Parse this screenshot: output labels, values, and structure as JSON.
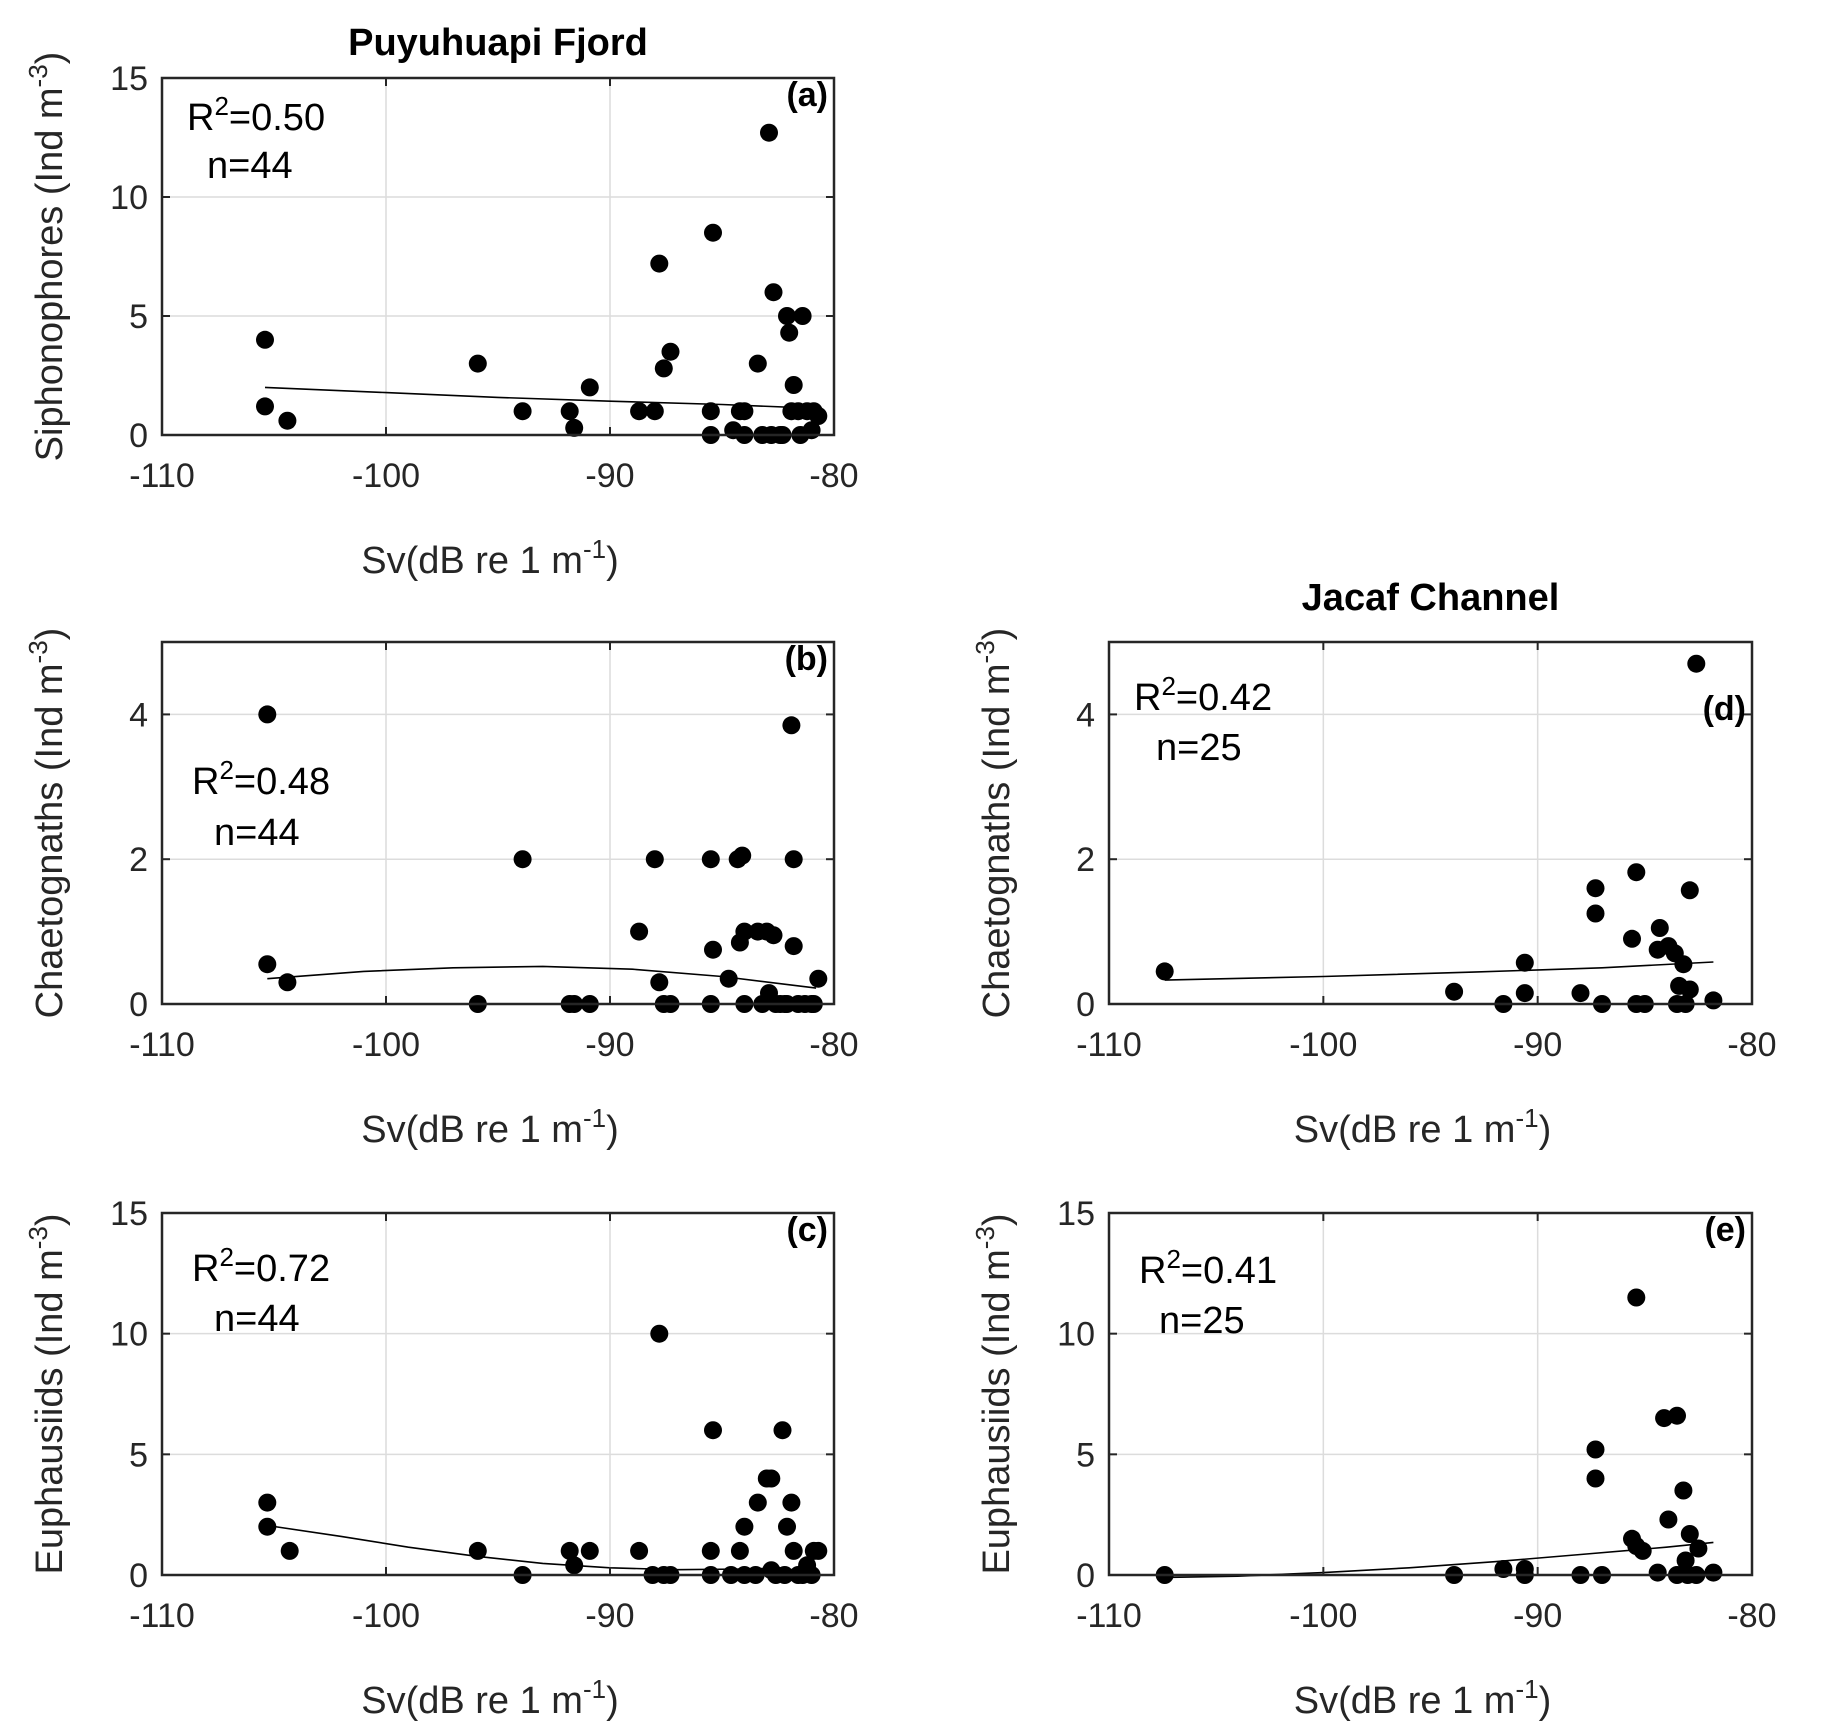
{
  "figure": {
    "xlabel_main": "Sv(dB re 1 m",
    "xlabel_sup": "-1",
    "xlabel_close": ")",
    "ylabel_unit_main": "(Ind m",
    "ylabel_unit_sup": "-3",
    "ylabel_unit_close": ")",
    "r2_prefix": "R",
    "r2_sup": "2"
  },
  "chart_data": [
    {
      "id": "a",
      "type": "scatter",
      "title": "Puyuhuapi Fjord",
      "panel_label": "(a)",
      "ylabel": "Siphonophores",
      "xlim": [
        -110,
        -80
      ],
      "ylim": [
        0,
        15
      ],
      "xticks": [
        -110,
        -100,
        -90,
        -80
      ],
      "xtick_labels": [
        "-110",
        "-100",
        "-90",
        "-80"
      ],
      "yticks": [
        0,
        5,
        10,
        15
      ],
      "ytick_labels": [
        "0",
        "5",
        "10",
        "15"
      ],
      "r2": "=0.50",
      "n": "n=44",
      "points": [
        [
          -105.4,
          4.0
        ],
        [
          -105.4,
          1.2
        ],
        [
          -104.4,
          0.6
        ],
        [
          -95.9,
          3.0
        ],
        [
          -93.9,
          1.0
        ],
        [
          -91.8,
          1.0
        ],
        [
          -91.6,
          0.3
        ],
        [
          -90.9,
          2.0
        ],
        [
          -88.7,
          1.0
        ],
        [
          -88.0,
          1.0
        ],
        [
          -87.8,
          7.2
        ],
        [
          -87.6,
          2.8
        ],
        [
          -87.3,
          3.5
        ],
        [
          -85.4,
          8.5
        ],
        [
          -85.5,
          1.0
        ],
        [
          -85.5,
          0.0
        ],
        [
          -84.5,
          0.2
        ],
        [
          -84.2,
          1.0
        ],
        [
          -84.0,
          1.0
        ],
        [
          -84.0,
          0.0
        ],
        [
          -83.4,
          3.0
        ],
        [
          -83.2,
          0.0
        ],
        [
          -82.9,
          12.7
        ],
        [
          -82.8,
          0.0
        ],
        [
          -82.7,
          6.0
        ],
        [
          -82.4,
          0.0
        ],
        [
          -82.3,
          0.0
        ],
        [
          -82.1,
          5.0
        ],
        [
          -82.0,
          4.3
        ],
        [
          -81.9,
          1.0
        ],
        [
          -81.8,
          2.1
        ],
        [
          -81.6,
          1.0
        ],
        [
          -81.5,
          0.0
        ],
        [
          -81.4,
          5.0
        ],
        [
          -81.2,
          1.0
        ],
        [
          -81.0,
          0.2
        ],
        [
          -80.9,
          1.0
        ],
        [
          -80.7,
          0.8
        ]
      ],
      "fit": [
        [
          -105.4,
          2.0
        ],
        [
          -100,
          1.78
        ],
        [
          -95,
          1.58
        ],
        [
          -90,
          1.42
        ],
        [
          -85,
          1.28
        ],
        [
          -80.8,
          1.12
        ]
      ]
    },
    {
      "id": "b",
      "type": "scatter",
      "title": "",
      "panel_label": "(b)",
      "ylabel": "Chaetognaths",
      "xlim": [
        -110,
        -80
      ],
      "ylim": [
        0,
        5
      ],
      "xticks": [
        -110,
        -100,
        -90,
        -80
      ],
      "xtick_labels": [
        "-110",
        "-100",
        "-90",
        "-80"
      ],
      "yticks": [
        0,
        2,
        4
      ],
      "ytick_labels": [
        "0",
        "2",
        "4"
      ],
      "r2": "=0.48",
      "n": "n=44",
      "points": [
        [
          -105.3,
          4.0
        ],
        [
          -105.3,
          0.55
        ],
        [
          -104.4,
          0.3
        ],
        [
          -95.9,
          0.0
        ],
        [
          -93.9,
          2.0
        ],
        [
          -91.8,
          0.0
        ],
        [
          -91.6,
          0.0
        ],
        [
          -90.9,
          0.0
        ],
        [
          -88.7,
          1.0
        ],
        [
          -88.0,
          2.0
        ],
        [
          -87.8,
          0.3
        ],
        [
          -87.6,
          0.0
        ],
        [
          -87.3,
          0.0
        ],
        [
          -85.5,
          2.0
        ],
        [
          -85.4,
          0.75
        ],
        [
          -85.5,
          0.0
        ],
        [
          -84.7,
          0.35
        ],
        [
          -84.3,
          2.0
        ],
        [
          -84.1,
          2.05
        ],
        [
          -84.2,
          0.85
        ],
        [
          -84.0,
          1.0
        ],
        [
          -84.0,
          0.0
        ],
        [
          -83.4,
          1.0
        ],
        [
          -83.2,
          0.0
        ],
        [
          -83.0,
          1.0
        ],
        [
          -82.9,
          0.15
        ],
        [
          -82.7,
          0.95
        ],
        [
          -82.6,
          0.0
        ],
        [
          -82.4,
          0.0
        ],
        [
          -82.2,
          0.0
        ],
        [
          -82.1,
          0.0
        ],
        [
          -81.9,
          3.85
        ],
        [
          -81.8,
          2.0
        ],
        [
          -81.8,
          0.8
        ],
        [
          -81.6,
          0.0
        ],
        [
          -81.3,
          0.0
        ],
        [
          -81.0,
          0.0
        ],
        [
          -80.9,
          0.0
        ],
        [
          -80.7,
          0.35
        ]
      ],
      "fit": [
        [
          -105.3,
          0.35
        ],
        [
          -101,
          0.45
        ],
        [
          -97,
          0.5
        ],
        [
          -93,
          0.52
        ],
        [
          -89,
          0.48
        ],
        [
          -85,
          0.38
        ],
        [
          -80.8,
          0.22
        ]
      ]
    },
    {
      "id": "c",
      "type": "scatter",
      "title": "",
      "panel_label": "(c)",
      "ylabel": "Euphausiids",
      "xlim": [
        -110,
        -80
      ],
      "ylim": [
        0,
        15
      ],
      "xticks": [
        -110,
        -100,
        -90,
        -80
      ],
      "xtick_labels": [
        "-110",
        "-100",
        "-90",
        "-80"
      ],
      "yticks": [
        0,
        5,
        10,
        15
      ],
      "ytick_labels": [
        "0",
        "5",
        "10",
        "15"
      ],
      "r2": "=0.72",
      "n": "n=44",
      "points": [
        [
          -105.3,
          3.0
        ],
        [
          -105.3,
          2.0
        ],
        [
          -104.3,
          1.0
        ],
        [
          -95.9,
          1.0
        ],
        [
          -93.9,
          0.0
        ],
        [
          -91.8,
          1.0
        ],
        [
          -91.6,
          0.4
        ],
        [
          -90.9,
          1.0
        ],
        [
          -88.7,
          1.0
        ],
        [
          -88.1,
          0.0
        ],
        [
          -87.8,
          10.0
        ],
        [
          -87.6,
          0.0
        ],
        [
          -87.3,
          0.0
        ],
        [
          -85.4,
          6.0
        ],
        [
          -85.5,
          1.0
        ],
        [
          -85.5,
          0.0
        ],
        [
          -84.6,
          0.0
        ],
        [
          -84.2,
          1.0
        ],
        [
          -84.0,
          2.0
        ],
        [
          -84.0,
          0.0
        ],
        [
          -83.5,
          0.0
        ],
        [
          -83.4,
          3.0
        ],
        [
          -83.0,
          4.0
        ],
        [
          -82.8,
          4.0
        ],
        [
          -82.8,
          0.2
        ],
        [
          -82.6,
          0.0
        ],
        [
          -82.3,
          6.0
        ],
        [
          -82.2,
          0.0
        ],
        [
          -82.1,
          2.0
        ],
        [
          -81.9,
          3.0
        ],
        [
          -81.8,
          1.0
        ],
        [
          -81.6,
          0.0
        ],
        [
          -81.4,
          0.0
        ],
        [
          -81.2,
          0.4
        ],
        [
          -81.0,
          0.0
        ],
        [
          -80.9,
          1.0
        ],
        [
          -80.7,
          1.0
        ]
      ],
      "fit": [
        [
          -105.3,
          2.05
        ],
        [
          -102,
          1.6
        ],
        [
          -99,
          1.15
        ],
        [
          -96,
          0.78
        ],
        [
          -93,
          0.48
        ],
        [
          -90,
          0.3
        ],
        [
          -87,
          0.22
        ],
        [
          -84,
          0.25
        ],
        [
          -82,
          0.3
        ]
      ]
    },
    {
      "id": "d",
      "type": "scatter",
      "title": "Jacaf Channel",
      "panel_label": "(d)",
      "ylabel": "Chaetognaths",
      "xlim": [
        -110,
        -80
      ],
      "ylim": [
        0,
        5
      ],
      "xticks": [
        -110,
        -100,
        -90,
        -80
      ],
      "xtick_labels": [
        "-110",
        "-100",
        "-90",
        "-80"
      ],
      "yticks": [
        0,
        2,
        4
      ],
      "ytick_labels": [
        "0",
        "2",
        "4"
      ],
      "r2": "=0.42",
      "n": "n=25",
      "points": [
        [
          -107.4,
          0.45
        ],
        [
          -93.9,
          0.17
        ],
        [
          -91.6,
          0.0
        ],
        [
          -90.6,
          0.57
        ],
        [
          -90.6,
          0.15
        ],
        [
          -88.0,
          0.15
        ],
        [
          -87.3,
          1.6
        ],
        [
          -87.3,
          1.25
        ],
        [
          -87.0,
          0.0
        ],
        [
          -85.6,
          0.9
        ],
        [
          -85.4,
          1.82
        ],
        [
          -85.4,
          0.0
        ],
        [
          -85.0,
          0.0
        ],
        [
          -84.3,
          1.05
        ],
        [
          -84.4,
          0.75
        ],
        [
          -83.9,
          0.8
        ],
        [
          -83.6,
          0.7
        ],
        [
          -83.4,
          0.25
        ],
        [
          -83.2,
          0.55
        ],
        [
          -83.5,
          0.0
        ],
        [
          -83.1,
          0.0
        ],
        [
          -82.9,
          1.57
        ],
        [
          -82.9,
          0.2
        ],
        [
          -82.6,
          4.7
        ],
        [
          -81.8,
          0.05
        ]
      ],
      "fit": [
        [
          -107.4,
          0.33
        ],
        [
          -100,
          0.38
        ],
        [
          -93,
          0.44
        ],
        [
          -87,
          0.5
        ],
        [
          -81.8,
          0.58
        ]
      ]
    },
    {
      "id": "e",
      "type": "scatter",
      "title": "",
      "panel_label": "(e)",
      "ylabel": "Euphausiids",
      "xlim": [
        -110,
        -80
      ],
      "ylim": [
        0,
        15
      ],
      "xticks": [
        -110,
        -100,
        -90,
        -80
      ],
      "xtick_labels": [
        "-110",
        "-100",
        "-90",
        "-80"
      ],
      "yticks": [
        0,
        5,
        10,
        15
      ],
      "ytick_labels": [
        "0",
        "5",
        "10",
        "15"
      ],
      "r2": "=0.41",
      "n": "n=25",
      "points": [
        [
          -107.4,
          0.0
        ],
        [
          -93.9,
          0.0
        ],
        [
          -91.6,
          0.25
        ],
        [
          -90.6,
          0.25
        ],
        [
          -90.6,
          0.0
        ],
        [
          -88.0,
          0.0
        ],
        [
          -87.3,
          5.2
        ],
        [
          -87.3,
          4.0
        ],
        [
          -87.0,
          0.0
        ],
        [
          -85.6,
          1.5
        ],
        [
          -85.4,
          11.5
        ],
        [
          -85.4,
          1.2
        ],
        [
          -85.1,
          1.0
        ],
        [
          -84.4,
          0.1
        ],
        [
          -84.1,
          6.5
        ],
        [
          -83.9,
          2.3
        ],
        [
          -83.5,
          6.6
        ],
        [
          -83.5,
          0.0
        ],
        [
          -83.2,
          3.5
        ],
        [
          -83.1,
          0.6
        ],
        [
          -83.0,
          0.0
        ],
        [
          -82.9,
          1.7
        ],
        [
          -82.6,
          0.0
        ],
        [
          -82.5,
          1.1
        ],
        [
          -81.8,
          0.1
        ]
      ],
      "fit": [
        [
          -107.4,
          -0.1
        ],
        [
          -104,
          -0.05
        ],
        [
          -100,
          0.1
        ],
        [
          -96,
          0.3
        ],
        [
          -92,
          0.55
        ],
        [
          -88,
          0.85
        ],
        [
          -84,
          1.15
        ],
        [
          -81.8,
          1.35
        ]
      ]
    }
  ]
}
